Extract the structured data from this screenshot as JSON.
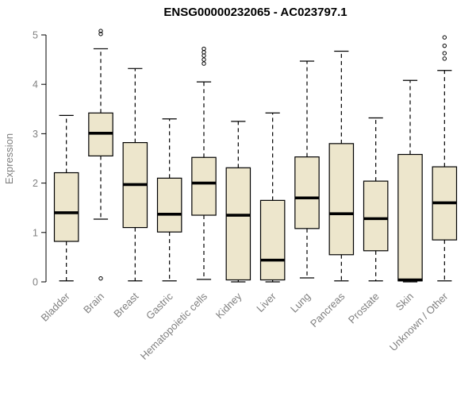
{
  "page": {
    "background": "#ffffff"
  },
  "chart_data": {
    "type": "boxplot",
    "title": "ENSG00000232065 - AC023797.1",
    "ylabel": "Expression",
    "xlabel": "",
    "ylim": [
      0,
      5
    ],
    "yticks": [
      0,
      1,
      2,
      3,
      4,
      5
    ],
    "grid": false,
    "legend": "none",
    "box_fill": "#EDE6CC",
    "stroke_color": "#000000",
    "axis_text_color": "#808080",
    "categories": [
      "Bladder",
      "Brain",
      "Breast",
      "Gastric",
      "Hematopoietic cells",
      "Kidney",
      "Liver",
      "Lung",
      "Pancreas",
      "Prostate",
      "Skin",
      "Unknown / Other"
    ],
    "boxes": [
      {
        "category": "Bladder",
        "whisker_low": 0.02,
        "q1": 0.82,
        "median": 1.4,
        "q3": 2.21,
        "whisker_high": 3.37,
        "outliers": []
      },
      {
        "category": "Brain",
        "whisker_low": 1.27,
        "q1": 2.55,
        "median": 3.01,
        "q3": 3.42,
        "whisker_high": 4.72,
        "outliers": [
          5.02,
          5.08,
          0.07
        ]
      },
      {
        "category": "Breast",
        "whisker_low": 0.02,
        "q1": 1.1,
        "median": 1.97,
        "q3": 2.82,
        "whisker_high": 4.32,
        "outliers": []
      },
      {
        "category": "Gastric",
        "whisker_low": 0.02,
        "q1": 1.01,
        "median": 1.37,
        "q3": 2.1,
        "whisker_high": 3.3,
        "outliers": []
      },
      {
        "category": "Hematopoietic cells",
        "whisker_low": 0.05,
        "q1": 1.35,
        "median": 2.0,
        "q3": 2.52,
        "whisker_high": 4.05,
        "outliers": [
          4.42,
          4.5,
          4.58,
          4.65,
          4.72
        ]
      },
      {
        "category": "Kidney",
        "whisker_low": 0.0,
        "q1": 0.04,
        "median": 1.35,
        "q3": 2.31,
        "whisker_high": 3.25,
        "outliers": []
      },
      {
        "category": "Liver",
        "whisker_low": 0.0,
        "q1": 0.04,
        "median": 0.44,
        "q3": 1.65,
        "whisker_high": 3.42,
        "outliers": []
      },
      {
        "category": "Lung",
        "whisker_low": 0.08,
        "q1": 1.08,
        "median": 1.7,
        "q3": 2.53,
        "whisker_high": 4.47,
        "outliers": []
      },
      {
        "category": "Pancreas",
        "whisker_low": 0.02,
        "q1": 0.55,
        "median": 1.38,
        "q3": 2.8,
        "whisker_high": 4.67,
        "outliers": []
      },
      {
        "category": "Prostate",
        "whisker_low": 0.02,
        "q1": 0.63,
        "median": 1.28,
        "q3": 2.04,
        "whisker_high": 3.32,
        "outliers": []
      },
      {
        "category": "Skin",
        "whisker_low": 0.0,
        "q1": 0.02,
        "median": 0.04,
        "q3": 2.58,
        "whisker_high": 4.08,
        "outliers": []
      },
      {
        "category": "Unknown / Other",
        "whisker_low": 0.02,
        "q1": 0.85,
        "median": 1.6,
        "q3": 2.33,
        "whisker_high": 4.28,
        "outliers": [
          4.52,
          4.63,
          4.78,
          4.95
        ]
      }
    ]
  }
}
